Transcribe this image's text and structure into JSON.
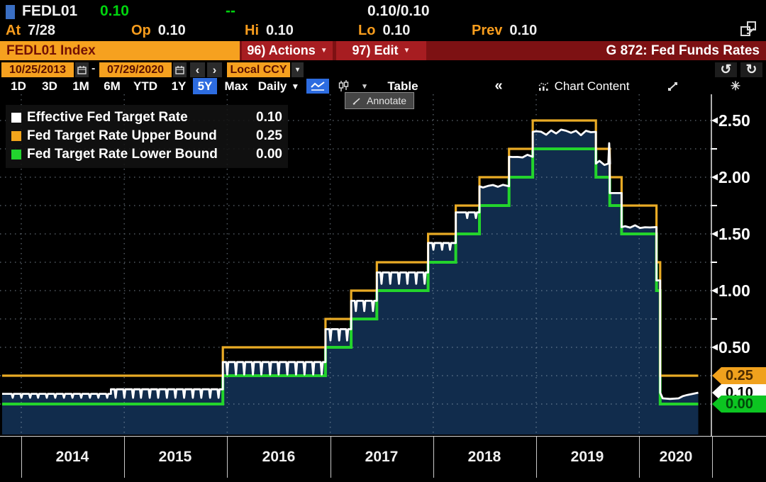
{
  "quote_bar": {
    "ticker": "FEDL01",
    "last": "0.10",
    "change": "--",
    "bid_ask": "0.10/0.10",
    "fields": [
      {
        "label": "At",
        "value": "7/28"
      },
      {
        "label": "Op",
        "value": "0.10"
      },
      {
        "label": "Hi",
        "value": "0.10"
      },
      {
        "label": "Lo",
        "value": "0.10"
      },
      {
        "label": "Prev",
        "value": "0.10"
      }
    ]
  },
  "command_bar": {
    "security": "FEDL01 Index",
    "actions": "96) Actions",
    "edit": "97) Edit",
    "title": "G 872: Fed Funds Rates"
  },
  "date_bar": {
    "start_date": "10/25/2013",
    "end_date": "07/29/2020",
    "separator": "-",
    "prev": "‹",
    "next": "›",
    "currency": "Local CCY",
    "dropdown_arrow": "▾",
    "undo": "↺",
    "redo": "↻"
  },
  "toolbar": {
    "ranges": [
      "1D",
      "3D",
      "1M",
      "6M",
      "YTD",
      "1Y",
      "5Y",
      "Max"
    ],
    "active_range": "5Y",
    "frequency": "Daily",
    "frequency_arrow": "▼",
    "chart_type_arrow": "▾",
    "table": "Table",
    "collapse": "«",
    "chart_content": "Chart Content",
    "gear": "✳"
  },
  "annotate": {
    "label": "Annotate"
  },
  "legend": [
    {
      "label": "Effective Fed Target Rate",
      "value": "0.10",
      "color": "#ffffff"
    },
    {
      "label": "Fed Target Rate Upper Bound",
      "value": "0.25",
      "color": "#f1a51c"
    },
    {
      "label": "Fed Target Rate Lower Bound",
      "value": "0.00",
      "color": "#22d42e"
    }
  ],
  "y_axis": {
    "tick_labels": [
      "2.50",
      "2.00",
      "1.50",
      "1.00",
      "0.50"
    ],
    "tick_values": [
      2.5,
      2.0,
      1.5,
      1.0,
      0.5
    ],
    "minor_tick_values": [
      0.75,
      1.25,
      1.75,
      2.25
    ],
    "badges": [
      {
        "label": "0.25",
        "value": 0.25,
        "bg": "#f0a11d",
        "fg": "#4d2c00"
      },
      {
        "label": "0.10",
        "value": 0.1,
        "bg": "#ffffff",
        "fg": "#000000"
      },
      {
        "label": "0.00",
        "value": 0.0,
        "bg": "#0cc521",
        "fg": "#00490a"
      }
    ]
  },
  "x_axis": {
    "years": [
      "2014",
      "2015",
      "2016",
      "2017",
      "2018",
      "2019",
      "2020"
    ]
  },
  "chart_data": {
    "type": "area+step-line",
    "title": "G 872: Fed Funds Rates",
    "x_range": [
      "2013-10-25",
      "2020-07-29"
    ],
    "ylim": [
      0,
      2.75
    ],
    "grid_step": 0.25,
    "fill_color": "#112c4c",
    "legend_position": "top-left",
    "series": [
      {
        "name": "Fed Target Rate Upper Bound",
        "color": "#e9ab25",
        "last": 0.25,
        "steps": [
          [
            "2013-10-25",
            0.25
          ],
          [
            "2015-12-17",
            0.5
          ],
          [
            "2016-12-15",
            0.75
          ],
          [
            "2017-03-16",
            1.0
          ],
          [
            "2017-06-15",
            1.25
          ],
          [
            "2017-12-14",
            1.5
          ],
          [
            "2018-03-22",
            1.75
          ],
          [
            "2018-06-14",
            2.0
          ],
          [
            "2018-09-27",
            2.25
          ],
          [
            "2018-12-20",
            2.5
          ],
          [
            "2019-08-01",
            2.25
          ],
          [
            "2019-09-19",
            2.0
          ],
          [
            "2019-10-31",
            1.75
          ],
          [
            "2020-03-03",
            1.25
          ],
          [
            "2020-03-16",
            0.25
          ]
        ]
      },
      {
        "name": "Fed Target Rate Lower Bound",
        "color": "#23d42c",
        "last": 0.0,
        "steps": [
          [
            "2013-10-25",
            0.0
          ],
          [
            "2015-12-17",
            0.25
          ],
          [
            "2016-12-15",
            0.5
          ],
          [
            "2017-03-16",
            0.75
          ],
          [
            "2017-06-15",
            1.0
          ],
          [
            "2017-12-14",
            1.25
          ],
          [
            "2018-03-22",
            1.5
          ],
          [
            "2018-06-14",
            1.75
          ],
          [
            "2018-09-27",
            2.0
          ],
          [
            "2018-12-20",
            2.25
          ],
          [
            "2019-08-01",
            2.0
          ],
          [
            "2019-09-19",
            1.75
          ],
          [
            "2019-10-31",
            1.5
          ],
          [
            "2020-03-03",
            1.0
          ],
          [
            "2020-03-16",
            0.0
          ]
        ]
      },
      {
        "name": "Effective Fed Target Rate",
        "color": "#ffffff",
        "last": 0.1,
        "segments": [
          [
            "2013-10-25",
            "2014-11-15",
            0.09,
            0.035,
            0
          ],
          [
            "2014-11-15",
            "2015-12-17",
            0.13,
            0.075,
            0
          ],
          [
            "2015-12-17",
            "2016-12-15",
            0.37,
            0.11,
            0
          ],
          [
            "2016-12-15",
            "2017-03-16",
            0.66,
            0.1,
            0
          ],
          [
            "2017-03-16",
            "2017-06-15",
            0.91,
            0.09,
            0
          ],
          [
            "2017-06-15",
            "2017-12-14",
            1.16,
            0.1,
            0
          ],
          [
            "2017-12-14",
            "2018-03-22",
            1.42,
            0.06,
            0
          ],
          [
            "2018-03-22",
            "2018-06-14",
            1.69,
            0.05,
            0
          ],
          [
            "2018-06-14",
            "2018-09-27",
            1.92,
            0,
            0.013
          ],
          [
            "2018-09-27",
            "2018-12-20",
            2.18,
            0,
            0.013
          ],
          [
            "2018-12-20",
            "2019-08-01",
            2.4,
            0,
            0.021
          ],
          [
            "2019-08-01",
            "2019-09-19",
            2.12,
            0,
            0.018
          ],
          [
            "2019-09-19",
            "2019-10-31",
            1.86,
            0.04,
            0
          ],
          [
            "2019-10-31",
            "2020-03-03",
            1.56,
            0,
            0.012
          ],
          [
            "2020-03-03",
            "2020-03-16",
            1.09,
            0,
            0
          ]
        ],
        "spike_up": {
          "date": "2019-09-17",
          "value": 2.3
        },
        "tail_points": [
          [
            "2020-03-16",
            0.1
          ],
          [
            "2020-03-25",
            0.05
          ],
          [
            "2020-04-20",
            0.045
          ],
          [
            "2020-05-20",
            0.05
          ],
          [
            "2020-06-05",
            0.07
          ],
          [
            "2020-06-20",
            0.08
          ],
          [
            "2020-07-10",
            0.09
          ],
          [
            "2020-07-29",
            0.1
          ]
        ]
      }
    ]
  }
}
